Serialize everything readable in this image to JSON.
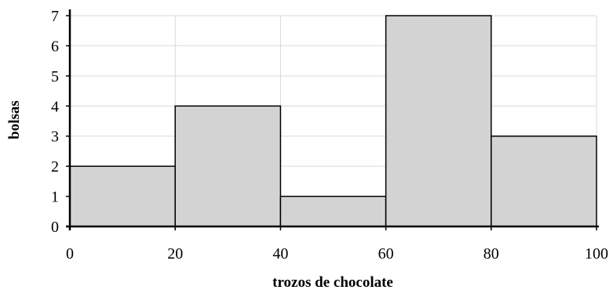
{
  "chart_data": {
    "type": "bar",
    "subtype": "histogram",
    "title": "",
    "xlabel": "trozos de chocolate",
    "ylabel": "bolsas",
    "bins": [
      {
        "from": 0,
        "to": 20,
        "value": 2
      },
      {
        "from": 20,
        "to": 40,
        "value": 4
      },
      {
        "from": 40,
        "to": 60,
        "value": 1
      },
      {
        "from": 60,
        "to": 80,
        "value": 7
      },
      {
        "from": 80,
        "to": 100,
        "value": 3
      }
    ],
    "xlim": [
      0,
      100
    ],
    "ylim": [
      0,
      7
    ],
    "xticks": [
      0,
      20,
      40,
      60,
      80,
      100
    ],
    "yticks": [
      0,
      1,
      2,
      3,
      4,
      5,
      6,
      7
    ],
    "grid": true,
    "colors": {
      "bar_fill": "#d3d3d3",
      "bar_stroke": "#000000",
      "grid": "#d9d9d9",
      "axis": "#000000"
    }
  }
}
